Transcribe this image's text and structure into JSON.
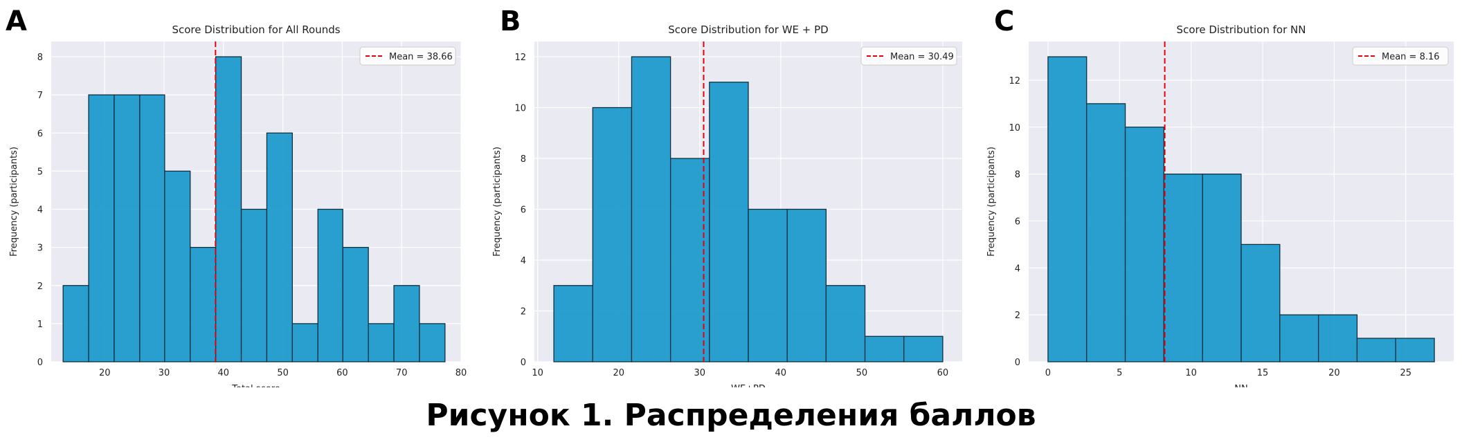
{
  "figure_caption": "Рисунок 1. Распределения баллов",
  "chart_data": [
    {
      "type": "bar",
      "panel_label": "A",
      "title": "Score Distribution for All Rounds",
      "xlabel": "Total score",
      "ylabel": "Frequency (participants)",
      "xlim": [
        11,
        80
      ],
      "ylim": [
        0,
        8.4
      ],
      "xticks": [
        20,
        30,
        40,
        50,
        60,
        70,
        80
      ],
      "yticks": [
        0,
        1,
        2,
        3,
        4,
        5,
        6,
        7,
        8
      ],
      "bins": [
        [
          13.0,
          17.3,
          2
        ],
        [
          17.3,
          21.6,
          7
        ],
        [
          21.6,
          25.9,
          7
        ],
        [
          25.9,
          30.1,
          7
        ],
        [
          30.1,
          34.4,
          5
        ],
        [
          34.4,
          38.7,
          3
        ],
        [
          38.7,
          43.0,
          8
        ],
        [
          43.0,
          47.3,
          4
        ],
        [
          47.3,
          51.6,
          6
        ],
        [
          51.6,
          55.9,
          1
        ],
        [
          55.9,
          60.1,
          4
        ],
        [
          60.1,
          64.4,
          3
        ],
        [
          64.4,
          68.7,
          1
        ],
        [
          68.7,
          73.0,
          2
        ],
        [
          73.0,
          77.3,
          1
        ]
      ],
      "mean": 38.66,
      "mean_label": "Mean = 38.66",
      "legend": "top-right",
      "grid": true
    },
    {
      "type": "bar",
      "panel_label": "B",
      "title": "Score Distribution for WE + PD",
      "xlabel": "WE+PD",
      "ylabel": "Frequency (participants)",
      "xlim": [
        9.6,
        62.4
      ],
      "ylim": [
        0,
        12.6
      ],
      "xticks": [
        10,
        20,
        30,
        40,
        50,
        60
      ],
      "yticks": [
        0,
        2,
        4,
        6,
        8,
        10,
        12
      ],
      "bins": [
        [
          12.0,
          16.8,
          3
        ],
        [
          16.8,
          21.6,
          10
        ],
        [
          21.6,
          26.4,
          12
        ],
        [
          26.4,
          31.2,
          8
        ],
        [
          31.2,
          36.0,
          11
        ],
        [
          36.0,
          40.8,
          6
        ],
        [
          40.8,
          45.6,
          6
        ],
        [
          45.6,
          50.4,
          3
        ],
        [
          50.4,
          55.2,
          1
        ],
        [
          55.2,
          60.0,
          1
        ]
      ],
      "mean": 30.49,
      "mean_label": "Mean = 30.49",
      "legend": "top-right",
      "grid": true
    },
    {
      "type": "bar",
      "panel_label": "C",
      "title": "Score Distribution for NN",
      "xlabel": "NN",
      "ylabel": "Frequency (participants)",
      "xlim": [
        -1.35,
        28.35
      ],
      "ylim": [
        0,
        13.65
      ],
      "xticks": [
        0,
        5,
        10,
        15,
        20,
        25
      ],
      "yticks": [
        0,
        2,
        4,
        6,
        8,
        10,
        12
      ],
      "bins": [
        [
          0.0,
          2.7,
          13
        ],
        [
          2.7,
          5.4,
          11
        ],
        [
          5.4,
          8.1,
          10
        ],
        [
          8.1,
          10.8,
          8
        ],
        [
          10.8,
          13.5,
          8
        ],
        [
          13.5,
          16.2,
          5
        ],
        [
          16.2,
          18.9,
          2
        ],
        [
          18.9,
          21.6,
          2
        ],
        [
          21.6,
          24.3,
          1
        ],
        [
          24.3,
          27.0,
          1
        ]
      ],
      "mean": 8.16,
      "mean_label": "Mean = 8.16",
      "legend": "top-right",
      "grid": true
    }
  ],
  "colors": {
    "bar_fill": "#1f9bcc",
    "bar_edge": "#10303f",
    "plot_bg": "#eaeaf2",
    "grid": "#ffffff",
    "mean_line": "#e8000b",
    "text": "#222222"
  }
}
